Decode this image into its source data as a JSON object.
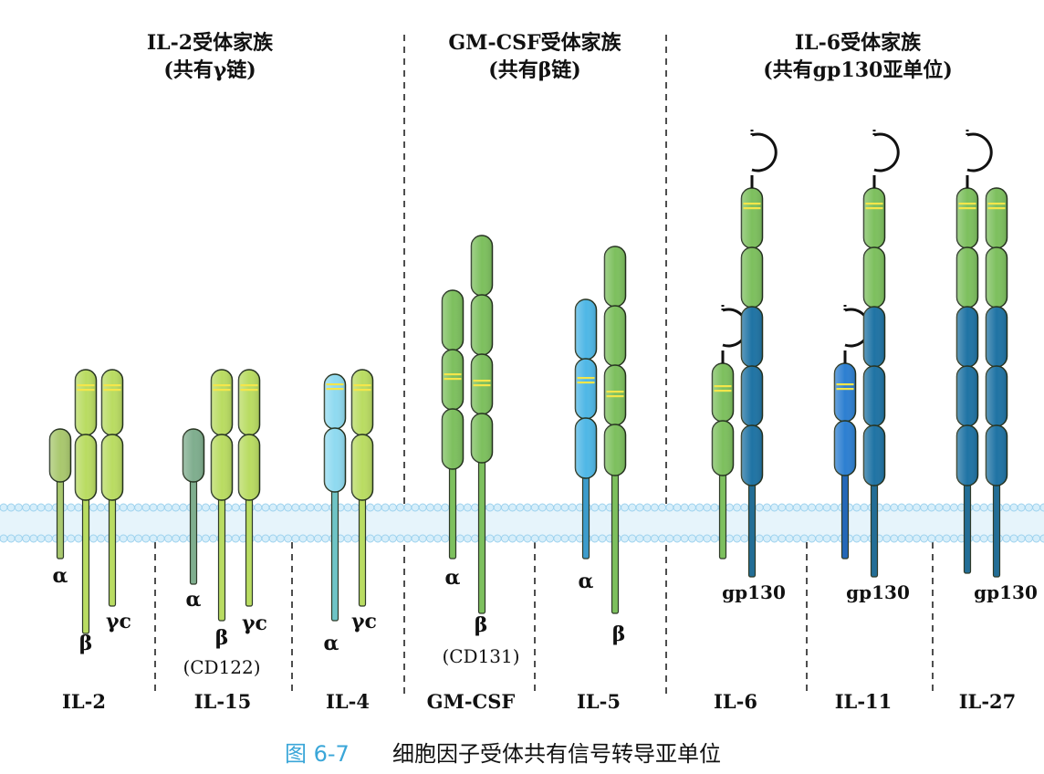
{
  "families": [
    {
      "title": "IL-2受体家族",
      "subtitle": "(共有γ链)"
    },
    {
      "title": "GM-CSF受体家族",
      "subtitle": "(共有β链)"
    },
    {
      "title": "IL-6受体家族",
      "subtitle": "(共有gp130亚单位)"
    }
  ],
  "receptors": [
    {
      "name": "IL-2",
      "chains": [
        {
          "label": "α",
          "sublabel": ""
        },
        {
          "label": "β",
          "sublabel": ""
        },
        {
          "label": "γc",
          "sublabel": ""
        }
      ]
    },
    {
      "name": "IL-15",
      "chains": [
        {
          "label": "α",
          "sublabel": ""
        },
        {
          "label": "β",
          "sublabel": "(CD122)"
        },
        {
          "label": "γc",
          "sublabel": ""
        }
      ]
    },
    {
      "name": "IL-4",
      "chains": [
        {
          "label": "α",
          "sublabel": ""
        },
        {
          "label": "γc",
          "sublabel": ""
        }
      ]
    },
    {
      "name": "GM-CSF",
      "chains": [
        {
          "label": "α",
          "sublabel": ""
        },
        {
          "label": "β",
          "sublabel": "(CD131)"
        }
      ]
    },
    {
      "name": "IL-5",
      "chains": [
        {
          "label": "α",
          "sublabel": ""
        },
        {
          "label": "β",
          "sublabel": ""
        }
      ]
    },
    {
      "name": "IL-6",
      "chains": [
        {
          "label": "",
          "sublabel": ""
        },
        {
          "label": "gp130",
          "sublabel": ""
        }
      ]
    },
    {
      "name": "IL-11",
      "chains": [
        {
          "label": "",
          "sublabel": ""
        },
        {
          "label": "gp130",
          "sublabel": ""
        }
      ]
    },
    {
      "name": "IL-27",
      "chains": [
        {
          "label": "",
          "sublabel": ""
        },
        {
          "label": "gp130",
          "sublabel": ""
        }
      ]
    }
  ],
  "caption": {
    "number": "图 6-7",
    "text": "细胞因子受体共有信号转导亚单位"
  },
  "colors": {
    "green": "#7dc05e",
    "yellow_green": "#b9dc62",
    "olive": "#a9c86e",
    "grey_green": "#7fae8e",
    "light_cyan": "#8fdaf0",
    "sky_blue": "#4fb7e6",
    "dark_blue": "#1f73a4",
    "mid_blue": "#2d7fd1",
    "stripe_yellow": "#f4e64a",
    "membrane": "#9dd2ee",
    "caption_blue": "#3aa6d8"
  },
  "icons": {
    "membrane": "lipid-bilayer",
    "loop": "ig-loop-domain"
  }
}
